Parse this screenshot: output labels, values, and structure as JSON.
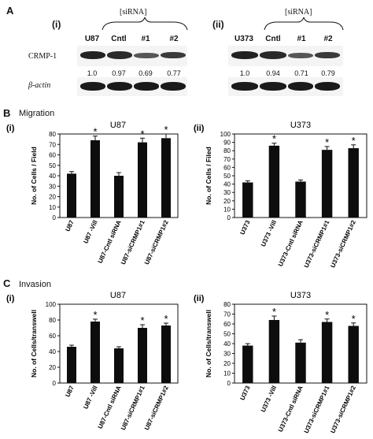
{
  "panel_a": {
    "letter": "A",
    "sub_i": "(i)",
    "sub_ii": "(ii)",
    "sirna_label": "[siRNA]",
    "rows": [
      "CRMP-1",
      "β-actin"
    ],
    "blot_i": {
      "lanes": [
        "U87",
        "Cntl",
        "#1",
        "#2"
      ],
      "ratios": [
        "1.0",
        "0.97",
        "0.69",
        "0.77"
      ]
    },
    "blot_ii": {
      "lanes": [
        "U373",
        "Cntl",
        "#1",
        "#2"
      ],
      "ratios": [
        "1.0",
        "0.94",
        "0.71",
        "0.79"
      ]
    }
  },
  "panel_b": {
    "letter": "B",
    "section": "Migration"
  },
  "panel_c": {
    "letter": "C",
    "section": "Invasion"
  },
  "chart_data": [
    {
      "id": "b-i",
      "type": "bar",
      "sub": "(i)",
      "title": "U87",
      "ylabel": "No. of Cells / Field",
      "categories": [
        "U87",
        "U87 -Vill",
        "U87-Cntl siRNA",
        "U87-siCRMP1#1",
        "U87-siCRMP1#2"
      ],
      "values": [
        42,
        74,
        40,
        72,
        76
      ],
      "errors": [
        2,
        4,
        3,
        4,
        4
      ],
      "significant": [
        false,
        true,
        false,
        true,
        true
      ],
      "ylim": [
        0,
        80
      ],
      "yticks": [
        0,
        10,
        20,
        30,
        40,
        50,
        60,
        70,
        80
      ]
    },
    {
      "id": "b-ii",
      "type": "bar",
      "sub": "(ii)",
      "title": "U373",
      "ylabel": "No. of Cells / Filed",
      "categories": [
        "U373",
        "U373 -Vill",
        "U373-Cntl siRNA",
        "U373-siCRMP1#1",
        "U373-siCRMP1#2"
      ],
      "values": [
        42,
        86,
        43,
        81,
        83
      ],
      "errors": [
        2,
        3,
        2,
        4,
        4
      ],
      "significant": [
        false,
        true,
        false,
        true,
        true
      ],
      "ylim": [
        0,
        100
      ],
      "yticks": [
        0,
        10,
        20,
        30,
        40,
        50,
        60,
        70,
        80,
        90,
        100
      ]
    },
    {
      "id": "c-i",
      "type": "bar",
      "sub": "(i)",
      "title": "U87",
      "ylabel": "No. of Cells/transwell",
      "categories": [
        "U87",
        "U87 -Vill",
        "U87-Cntl siRNA",
        "U87-siCRMP1#1",
        "U87-siCRMP1#2"
      ],
      "values": [
        46,
        78,
        44,
        70,
        73
      ],
      "errors": [
        2,
        3,
        2,
        4,
        3
      ],
      "significant": [
        false,
        true,
        false,
        true,
        true
      ],
      "ylim": [
        0,
        100
      ],
      "yticks": [
        0,
        20,
        40,
        60,
        80,
        100
      ]
    },
    {
      "id": "c-ii",
      "type": "bar",
      "sub": "(ii)",
      "title": "U373",
      "ylabel": "No. of Cells/transwell",
      "categories": [
        "U373",
        "U373 -Vill",
        "U373-Cntl siRNA",
        "U373-siCRMP1#1",
        "U373-siCRMP1#2"
      ],
      "values": [
        38,
        64,
        41,
        62,
        58
      ],
      "errors": [
        2,
        4,
        3,
        3,
        3
      ],
      "significant": [
        false,
        true,
        false,
        true,
        true
      ],
      "ylim": [
        0,
        80
      ],
      "yticks": [
        0,
        10,
        20,
        30,
        40,
        50,
        60,
        70,
        80
      ]
    }
  ],
  "significance_marker": "*"
}
